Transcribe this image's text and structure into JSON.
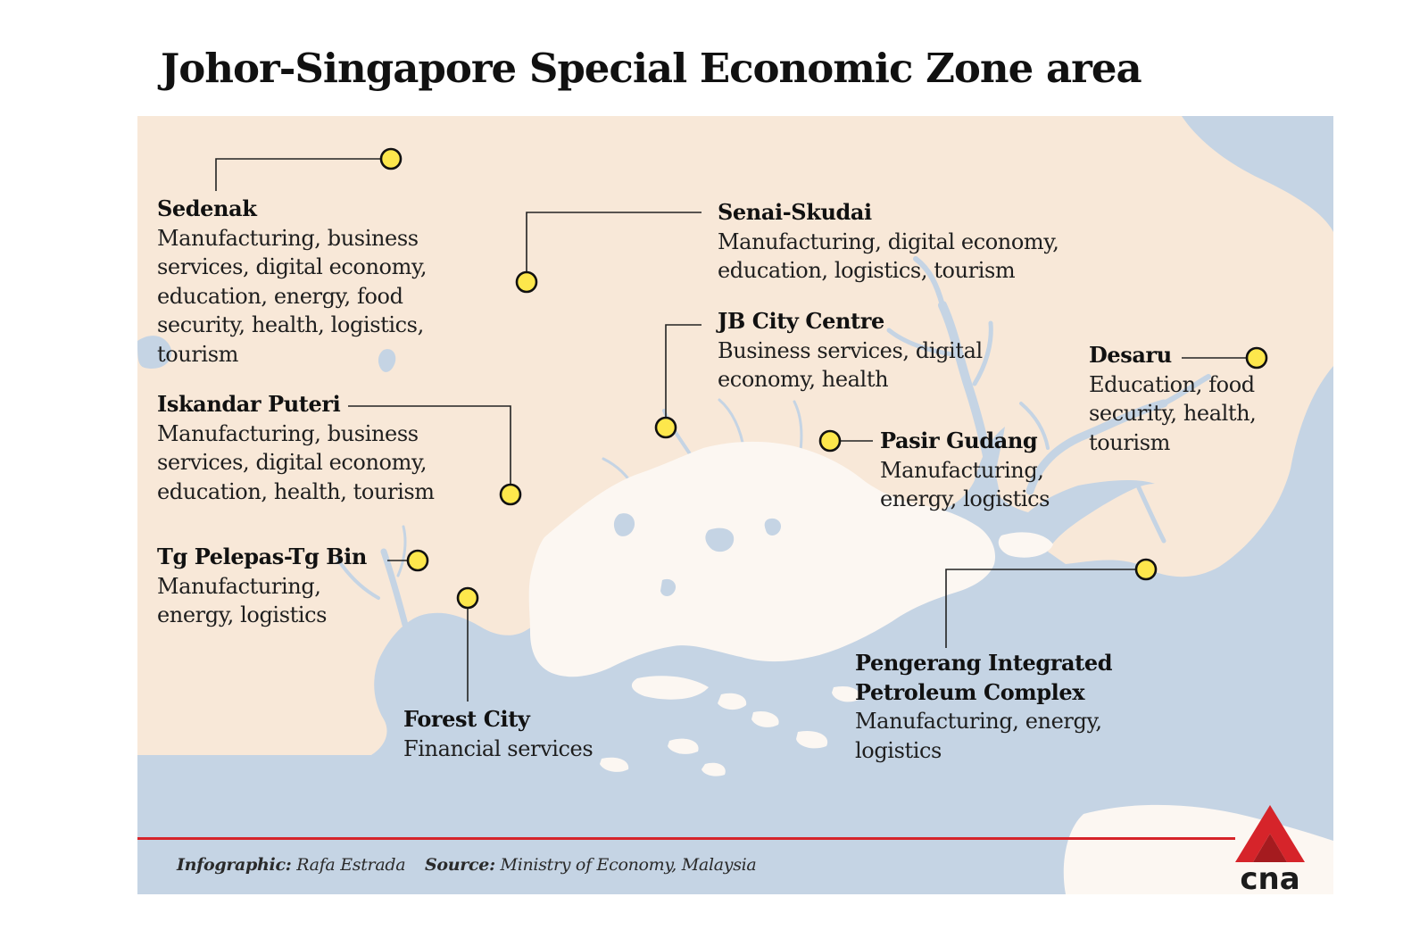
{
  "title": "Johor-Singapore Special Economic Zone area",
  "map": {
    "colors": {
      "water": "#c5d4e4",
      "malaysia_land": "#f8e8d8",
      "singapore_land": "#fcf7f2",
      "marker_fill": "#fde74c",
      "marker_stroke": "#111111",
      "leader_line": "#222222",
      "accent_red": "#d6242a"
    },
    "zones": [
      {
        "name": "Sedenak",
        "sectors": "Manufacturing, business services, digital economy, education, energy, food security, health, logistics, tourism"
      },
      {
        "name": "Senai-Skudai",
        "sectors": "Manufacturing, digital economy, education, logistics, tourism"
      },
      {
        "name": "JB City Centre",
        "sectors": "Business services, digital economy, health"
      },
      {
        "name": "Desaru",
        "sectors": "Education, food security, health, tourism"
      },
      {
        "name": "Iskandar Puteri",
        "sectors": "Manufacturing, business services, digital economy, education, health, tourism"
      },
      {
        "name": "Pasir Gudang",
        "sectors": "Manufacturing, energy, logistics"
      },
      {
        "name": "Tg Pelepas-Tg Bin",
        "sectors": "Manufacturing, energy, logistics"
      },
      {
        "name": "Forest City",
        "sectors": "Financial services"
      },
      {
        "name": "Pengerang Integrated Petroleum Complex",
        "sectors": "Manufacturing, energy, logistics"
      }
    ]
  },
  "credits": {
    "infographic_label": "Infographic:",
    "infographic_value": "Rafa Estrada",
    "source_label": "Source:",
    "source_value": "Ministry of Economy, Malaysia"
  },
  "logo": {
    "text": "cna",
    "icon": "cna-logo-icon"
  }
}
